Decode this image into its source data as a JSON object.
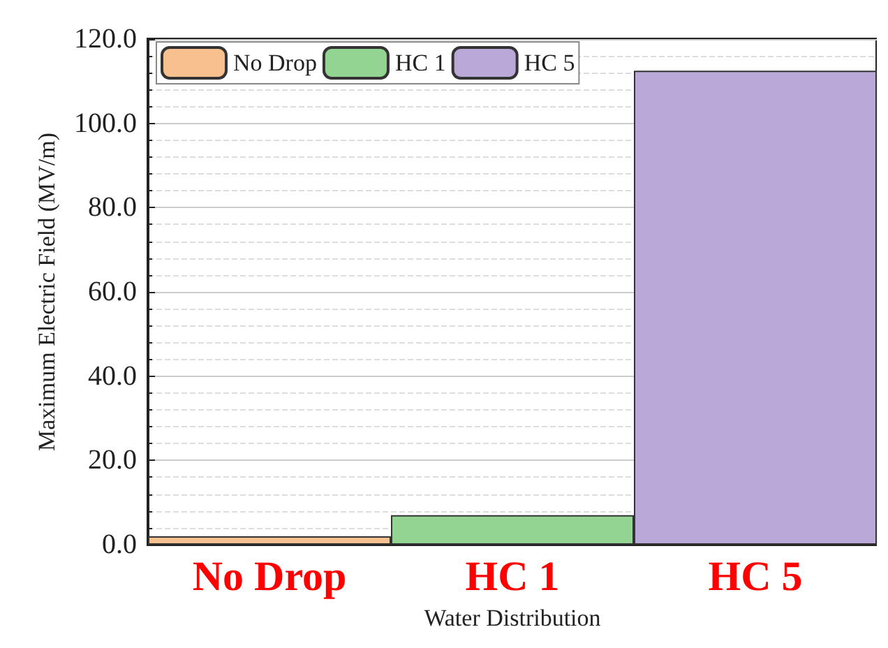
{
  "chart_data": {
    "type": "bar",
    "xlabel": "Water Distribution",
    "ylabel": "Maximum Electric Field (MV/m)",
    "categories": [
      "No Drop",
      "HC 1",
      "HC 5"
    ],
    "series": [
      {
        "name": "No Drop",
        "color": "#f9c08f",
        "values": [
          2,
          null,
          null
        ]
      },
      {
        "name": "HC 1",
        "color": "#93d493",
        "values": [
          null,
          7,
          null
        ]
      },
      {
        "name": "HC 5",
        "color": "#b9a8d8",
        "values": [
          null,
          null,
          112.5
        ]
      }
    ],
    "ylim": [
      0,
      120
    ],
    "yticks": [
      {
        "value": 0,
        "label": "0.0"
      },
      {
        "value": 20,
        "label": "20.0"
      },
      {
        "value": 40,
        "label": "40.0"
      },
      {
        "value": 60,
        "label": "60.0"
      },
      {
        "value": 80,
        "label": "80.0"
      },
      {
        "value": 100,
        "label": "100.0"
      },
      {
        "value": 120,
        "label": "120.0"
      }
    ],
    "grid": "y",
    "legend": "top left"
  }
}
